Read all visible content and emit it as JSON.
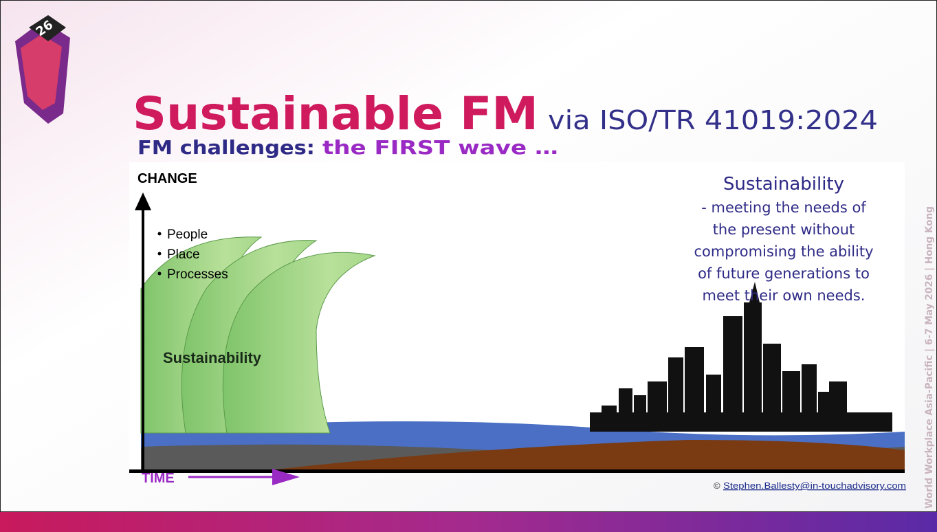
{
  "header": {
    "logo_number": "26",
    "title": "Sustainable FM",
    "title_suffix": "via ISO/TR 41019:2024",
    "subtitle_lead": "FM challenges:",
    "subtitle_highlight": "the FIRST wave …"
  },
  "diagram": {
    "y_axis_label": "CHANGE",
    "bullets": [
      "People",
      "Place",
      "Processes"
    ],
    "wave_label": "Sustainability",
    "x_axis_label": "TIME"
  },
  "definition": {
    "heading": "Sustainability",
    "lines": [
      "- meeting the needs of",
      "the present without",
      "compromising the ability",
      "of future generations to",
      "meet their own needs."
    ]
  },
  "footer": {
    "copyright": "©",
    "email": "Stephen.Ballesty@in-touchadvisory.com"
  },
  "side_text": "World Workplace Asia-Pacific | 6-7 May 2026 | Hong Kong"
}
